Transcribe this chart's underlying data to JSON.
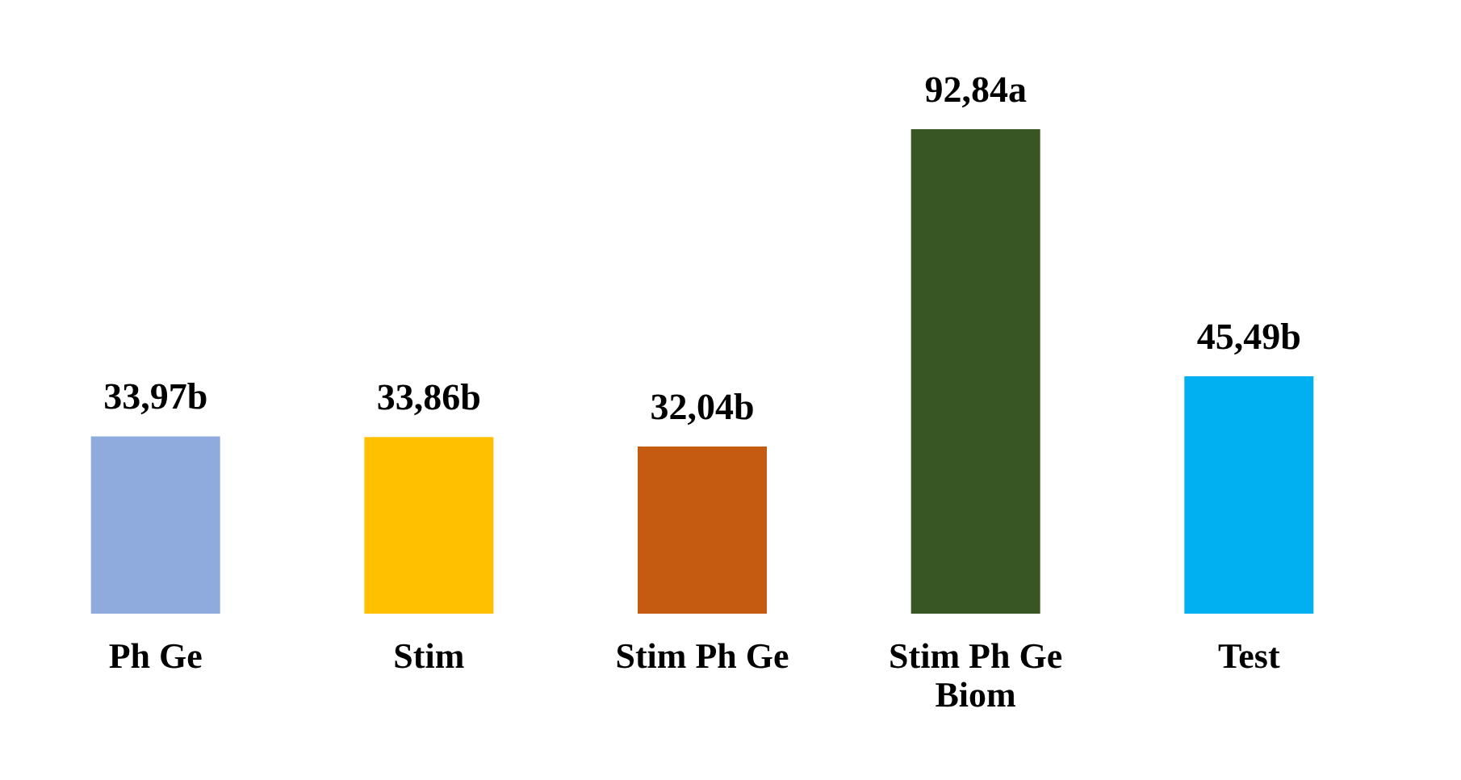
{
  "chart_data": {
    "type": "bar",
    "categories": [
      "Ph Ge",
      "Stim",
      "Stim Ph Ge",
      "Stim Ph Ge Biom",
      "Test"
    ],
    "values": [
      33.97,
      33.86,
      32.04,
      92.84,
      45.49
    ],
    "colors": [
      "#8faadc",
      "#ffc000",
      "#c55a11",
      "#375623",
      "#00b0f0"
    ],
    "value_labels": [
      "33,97b",
      "33,86b",
      "32,04b",
      "92,84a",
      "45,49b"
    ],
    "grid": false,
    "tick_labels": "x"
  }
}
